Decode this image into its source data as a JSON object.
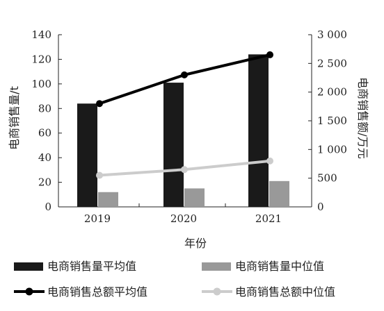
{
  "chart_data": {
    "type": "bar+line",
    "categories": [
      "2019",
      "2020",
      "2021"
    ],
    "xlabel": "年份",
    "ylabel_left": "电商销售量/t",
    "ylabel_right": "电商销售额/万元",
    "ylim_left": [
      0,
      140
    ],
    "ylim_right": [
      0,
      3000
    ],
    "yticks_left": [
      "0",
      "20",
      "40",
      "60",
      "80",
      "100",
      "120",
      "140"
    ],
    "yticks_right": [
      "0",
      "500",
      "1 000",
      "1 500",
      "2 000",
      "2 500",
      "3 000"
    ],
    "grid": false,
    "legend_position": "bottom",
    "bar_series": [
      {
        "name": "电商销售量平均值",
        "axis": "left",
        "color": "#1a1a1a",
        "values": [
          84,
          101,
          124
        ]
      },
      {
        "name": "电商销售量中位值",
        "axis": "left",
        "color": "#999999",
        "values": [
          12,
          15,
          21
        ]
      }
    ],
    "line_series": [
      {
        "name": "电商销售总额平均值",
        "axis": "right",
        "color": "#000000",
        "values": [
          1800,
          2300,
          2650
        ]
      },
      {
        "name": "电商销售总额中位值",
        "axis": "right",
        "color": "#cccccc",
        "values": [
          550,
          650,
          800
        ]
      }
    ]
  }
}
